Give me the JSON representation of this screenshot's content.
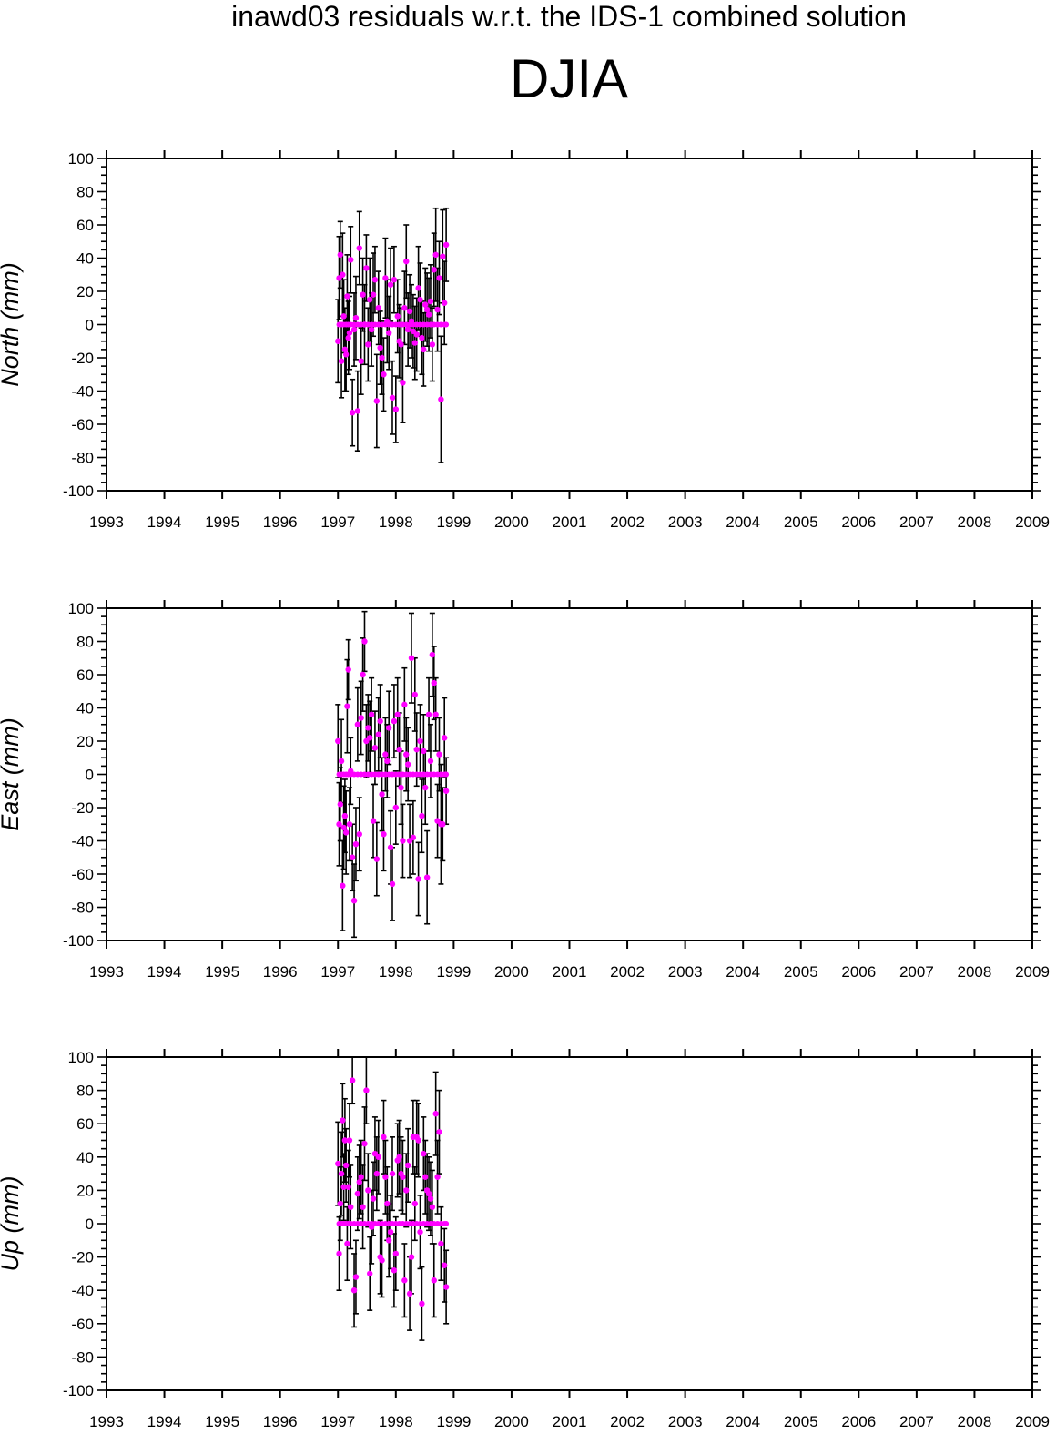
{
  "header": {
    "suptitle": "inawd03 residuals w.r.t. the IDS-1 combined solution",
    "station": "DJIA"
  },
  "chart_data": [
    {
      "type": "scatter",
      "title": "",
      "xlabel": "",
      "ylabel": "North (mm)",
      "xlim": [
        1993,
        2009
      ],
      "ylim": [
        -100,
        100
      ],
      "xticks": [
        1993,
        1994,
        1995,
        1996,
        1997,
        1998,
        1999,
        2000,
        2001,
        2002,
        2003,
        2004,
        2005,
        2006,
        2007,
        2008,
        2009
      ],
      "yticks": [
        -100,
        -80,
        -60,
        -40,
        -20,
        0,
        20,
        40,
        60,
        80,
        100
      ],
      "marker_color": "#ff00ff",
      "errorbar_color": "#000000",
      "error_bars": true,
      "series": [
        {
          "x": [
            1997.0,
            1997.02,
            1997.04,
            1997.06,
            1997.08,
            1997.1,
            1997.12,
            1997.14,
            1997.16,
            1997.18,
            1997.2,
            1997.22,
            1997.25,
            1997.28,
            1997.31,
            1997.34,
            1997.37,
            1997.4,
            1997.43,
            1997.46,
            1997.49,
            1997.52,
            1997.55,
            1997.58,
            1997.61,
            1997.64,
            1997.67,
            1997.7,
            1997.73,
            1997.76,
            1997.79,
            1997.82,
            1997.85,
            1997.88,
            1997.91,
            1997.94,
            1997.97,
            1998.0,
            1998.03,
            1998.06,
            1998.09,
            1998.12,
            1998.15,
            1998.18,
            1998.21,
            1998.24,
            1998.27,
            1998.3,
            1998.33,
            1998.36,
            1998.39,
            1998.42,
            1998.45,
            1998.48,
            1998.51,
            1998.54,
            1998.57,
            1998.6,
            1998.63,
            1998.66,
            1998.69,
            1998.72,
            1998.75,
            1998.78,
            1998.81,
            1998.84,
            1998.87
          ],
          "y": [
            -10,
            28,
            42,
            -22,
            30,
            5,
            -15,
            -18,
            17,
            -8,
            -5,
            39,
            -53,
            -3,
            4,
            -52,
            46,
            -22,
            18,
            0,
            34,
            -12,
            15,
            -3,
            18,
            27,
            -46,
            10,
            -14,
            -20,
            -30,
            28,
            2,
            -5,
            24,
            -44,
            27,
            -51,
            5,
            -10,
            -12,
            -35,
            10,
            38,
            -3,
            8,
            2,
            -4,
            -11,
            -6,
            22,
            15,
            -8,
            -15,
            12,
            9,
            6,
            14,
            -12,
            33,
            42,
            9,
            28,
            -45,
            41,
            13,
            48
          ],
          "err": [
            25,
            25,
            20,
            22,
            25,
            22,
            25,
            22,
            25,
            22,
            22,
            20,
            20,
            22,
            25,
            24,
            22,
            20,
            22,
            24,
            20,
            22,
            25,
            22,
            25,
            20,
            28,
            22,
            22,
            22,
            22,
            24,
            25,
            22,
            22,
            22,
            20,
            20,
            22,
            22,
            22,
            24,
            22,
            22,
            22,
            22,
            22,
            22,
            22,
            22,
            25,
            22,
            22,
            22,
            22,
            22,
            22,
            22,
            22,
            22,
            28,
            25,
            22,
            38,
            28,
            25,
            22
          ],
          "zero_marks": [
            1997.02,
            1997.06,
            1997.1,
            1997.14,
            1997.18,
            1997.22,
            1997.28,
            1997.34,
            1997.4,
            1997.46,
            1997.52,
            1997.58,
            1997.64,
            1997.7,
            1997.76,
            1997.82,
            1997.88,
            1997.94,
            1998.0,
            1998.06,
            1998.12,
            1998.18,
            1998.24,
            1998.3,
            1998.36,
            1998.42,
            1998.48,
            1998.54,
            1998.6,
            1998.66,
            1998.72,
            1998.78,
            1998.84,
            1998.87
          ]
        }
      ]
    },
    {
      "type": "scatter",
      "title": "",
      "xlabel": "",
      "ylabel": "East (mm)",
      "xlim": [
        1993,
        2009
      ],
      "ylim": [
        -100,
        100
      ],
      "xticks": [
        1993,
        1994,
        1995,
        1996,
        1997,
        1998,
        1999,
        2000,
        2001,
        2002,
        2003,
        2004,
        2005,
        2006,
        2007,
        2008,
        2009
      ],
      "yticks": [
        -100,
        -80,
        -60,
        -40,
        -20,
        0,
        20,
        40,
        60,
        80,
        100
      ],
      "marker_color": "#ff00ff",
      "errorbar_color": "#000000",
      "error_bars": true,
      "series": [
        {
          "x": [
            1997.0,
            1997.02,
            1997.04,
            1997.06,
            1997.08,
            1997.1,
            1997.12,
            1997.14,
            1997.16,
            1997.18,
            1997.2,
            1997.22,
            1997.25,
            1997.28,
            1997.31,
            1997.34,
            1997.37,
            1997.4,
            1997.43,
            1997.46,
            1997.49,
            1997.52,
            1997.55,
            1997.58,
            1997.61,
            1997.64,
            1997.67,
            1997.7,
            1997.73,
            1997.76,
            1997.79,
            1997.82,
            1997.85,
            1997.88,
            1997.91,
            1997.94,
            1997.97,
            1998.0,
            1998.03,
            1998.06,
            1998.09,
            1998.12,
            1998.15,
            1998.18,
            1998.21,
            1998.24,
            1998.27,
            1998.3,
            1998.33,
            1998.36,
            1998.39,
            1998.42,
            1998.45,
            1998.48,
            1998.51,
            1998.54,
            1998.57,
            1998.6,
            1998.63,
            1998.66,
            1998.69,
            1998.72,
            1998.75,
            1998.78,
            1998.81,
            1998.84,
            1998.87
          ],
          "y": [
            20,
            -30,
            -18,
            8,
            -67,
            -32,
            -25,
            -35,
            41,
            63,
            -30,
            2,
            -50,
            -76,
            -42,
            30,
            -36,
            34,
            60,
            80,
            20,
            28,
            22,
            36,
            -28,
            16,
            -51,
            24,
            32,
            -12,
            -36,
            12,
            8,
            28,
            -44,
            -66,
            32,
            -20,
            36,
            15,
            -8,
            -40,
            42,
            12,
            6,
            -40,
            70,
            -38,
            48,
            15,
            -63,
            20,
            -25,
            14,
            -8,
            -62,
            36,
            8,
            72,
            55,
            36,
            -28,
            12,
            -30,
            -30,
            22,
            -10
          ],
          "err": [
            22,
            25,
            22,
            25,
            27,
            25,
            22,
            25,
            28,
            18,
            22,
            20,
            20,
            22,
            22,
            22,
            22,
            22,
            22,
            18,
            22,
            20,
            22,
            22,
            22,
            22,
            22,
            22,
            22,
            22,
            22,
            22,
            22,
            22,
            22,
            22,
            22,
            22,
            22,
            22,
            22,
            22,
            22,
            22,
            22,
            22,
            27,
            22,
            22,
            22,
            22,
            22,
            22,
            22,
            22,
            28,
            22,
            22,
            25,
            22,
            22,
            22,
            22,
            36,
            22,
            24,
            20
          ],
          "zero_marks": [
            1997.02,
            1997.06,
            1997.1,
            1997.14,
            1997.18,
            1997.22,
            1997.28,
            1997.34,
            1997.4,
            1997.46,
            1997.52,
            1997.58,
            1997.64,
            1997.7,
            1997.76,
            1997.82,
            1997.88,
            1997.94,
            1998.0,
            1998.06,
            1998.12,
            1998.18,
            1998.24,
            1998.3,
            1998.36,
            1998.42,
            1998.48,
            1998.54,
            1998.6,
            1998.66,
            1998.72,
            1998.78,
            1998.84,
            1998.87
          ]
        }
      ]
    },
    {
      "type": "scatter",
      "title": "",
      "xlabel": "",
      "ylabel": "Up (mm)",
      "xlim": [
        1993,
        2009
      ],
      "ylim": [
        -100,
        100
      ],
      "xticks": [
        1993,
        1994,
        1995,
        1996,
        1997,
        1998,
        1999,
        2000,
        2001,
        2002,
        2003,
        2004,
        2005,
        2006,
        2007,
        2008,
        2009
      ],
      "yticks": [
        -100,
        -80,
        -60,
        -40,
        -20,
        0,
        20,
        40,
        60,
        80,
        100
      ],
      "marker_color": "#ff00ff",
      "errorbar_color": "#000000",
      "error_bars": true,
      "series": [
        {
          "x": [
            1997.0,
            1997.02,
            1997.04,
            1997.06,
            1997.08,
            1997.1,
            1997.12,
            1997.14,
            1997.16,
            1997.18,
            1997.2,
            1997.22,
            1997.25,
            1997.28,
            1997.31,
            1997.34,
            1997.37,
            1997.4,
            1997.43,
            1997.46,
            1997.49,
            1997.52,
            1997.55,
            1997.58,
            1997.61,
            1997.64,
            1997.67,
            1997.7,
            1997.73,
            1997.76,
            1997.79,
            1997.82,
            1997.85,
            1997.88,
            1997.91,
            1997.94,
            1997.97,
            1998.0,
            1998.03,
            1998.06,
            1998.09,
            1998.12,
            1998.15,
            1998.18,
            1998.21,
            1998.24,
            1998.27,
            1998.3,
            1998.33,
            1998.36,
            1998.39,
            1998.42,
            1998.45,
            1998.48,
            1998.51,
            1998.54,
            1998.57,
            1998.6,
            1998.63,
            1998.66,
            1998.69,
            1998.72,
            1998.75,
            1998.78,
            1998.84,
            1998.87
          ],
          "y": [
            36,
            -18,
            12,
            30,
            62,
            22,
            50,
            35,
            -12,
            22,
            50,
            10,
            86,
            -40,
            -32,
            18,
            25,
            28,
            10,
            48,
            80,
            20,
            -30,
            -2,
            15,
            42,
            30,
            40,
            -20,
            -22,
            52,
            28,
            12,
            -10,
            -5,
            30,
            -28,
            -18,
            38,
            40,
            30,
            28,
            -34,
            20,
            35,
            -42,
            -20,
            52,
            12,
            52,
            50,
            -5,
            -48,
            42,
            28,
            20,
            18,
            15,
            10,
            -34,
            66,
            28,
            55,
            -12,
            -25,
            -38
          ],
          "err": [
            25,
            22,
            22,
            25,
            22,
            20,
            25,
            22,
            22,
            22,
            22,
            25,
            14,
            22,
            22,
            22,
            22,
            22,
            25,
            22,
            20,
            22,
            22,
            22,
            22,
            22,
            22,
            22,
            22,
            22,
            22,
            22,
            22,
            22,
            22,
            22,
            22,
            22,
            22,
            22,
            22,
            22,
            22,
            22,
            22,
            22,
            22,
            22,
            22,
            22,
            22,
            22,
            22,
            22,
            22,
            22,
            22,
            22,
            22,
            22,
            25,
            22,
            25,
            22,
            22,
            22
          ],
          "zero_marks": [
            1997.02,
            1997.06,
            1997.1,
            1997.14,
            1997.18,
            1997.22,
            1997.28,
            1997.34,
            1997.4,
            1997.46,
            1997.52,
            1997.58,
            1997.64,
            1997.7,
            1997.76,
            1997.82,
            1997.88,
            1997.94,
            1998.0,
            1998.06,
            1998.12,
            1998.18,
            1998.24,
            1998.3,
            1998.36,
            1998.42,
            1998.48,
            1998.54,
            1998.6,
            1998.66,
            1998.72,
            1998.78,
            1998.84,
            1998.87
          ]
        }
      ]
    }
  ]
}
